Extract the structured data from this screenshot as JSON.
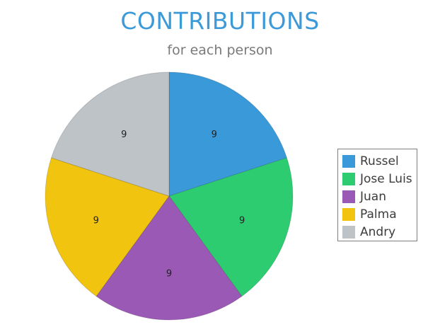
{
  "chart_data": {
    "type": "pie",
    "title": "CONTRIBUTIONS",
    "subtitle": "for each person",
    "categories": [
      "Russel",
      "Jose Luis",
      "Juan",
      "Palma",
      "Andry"
    ],
    "values": [
      9,
      9,
      9,
      9,
      9
    ],
    "colors": [
      "#3a9ad9",
      "#2ecc71",
      "#9b59b6",
      "#f1c40f",
      "#bdc3c7"
    ],
    "legend_position": "right",
    "start_angle": "12 o'clock",
    "direction": "clockwise"
  }
}
